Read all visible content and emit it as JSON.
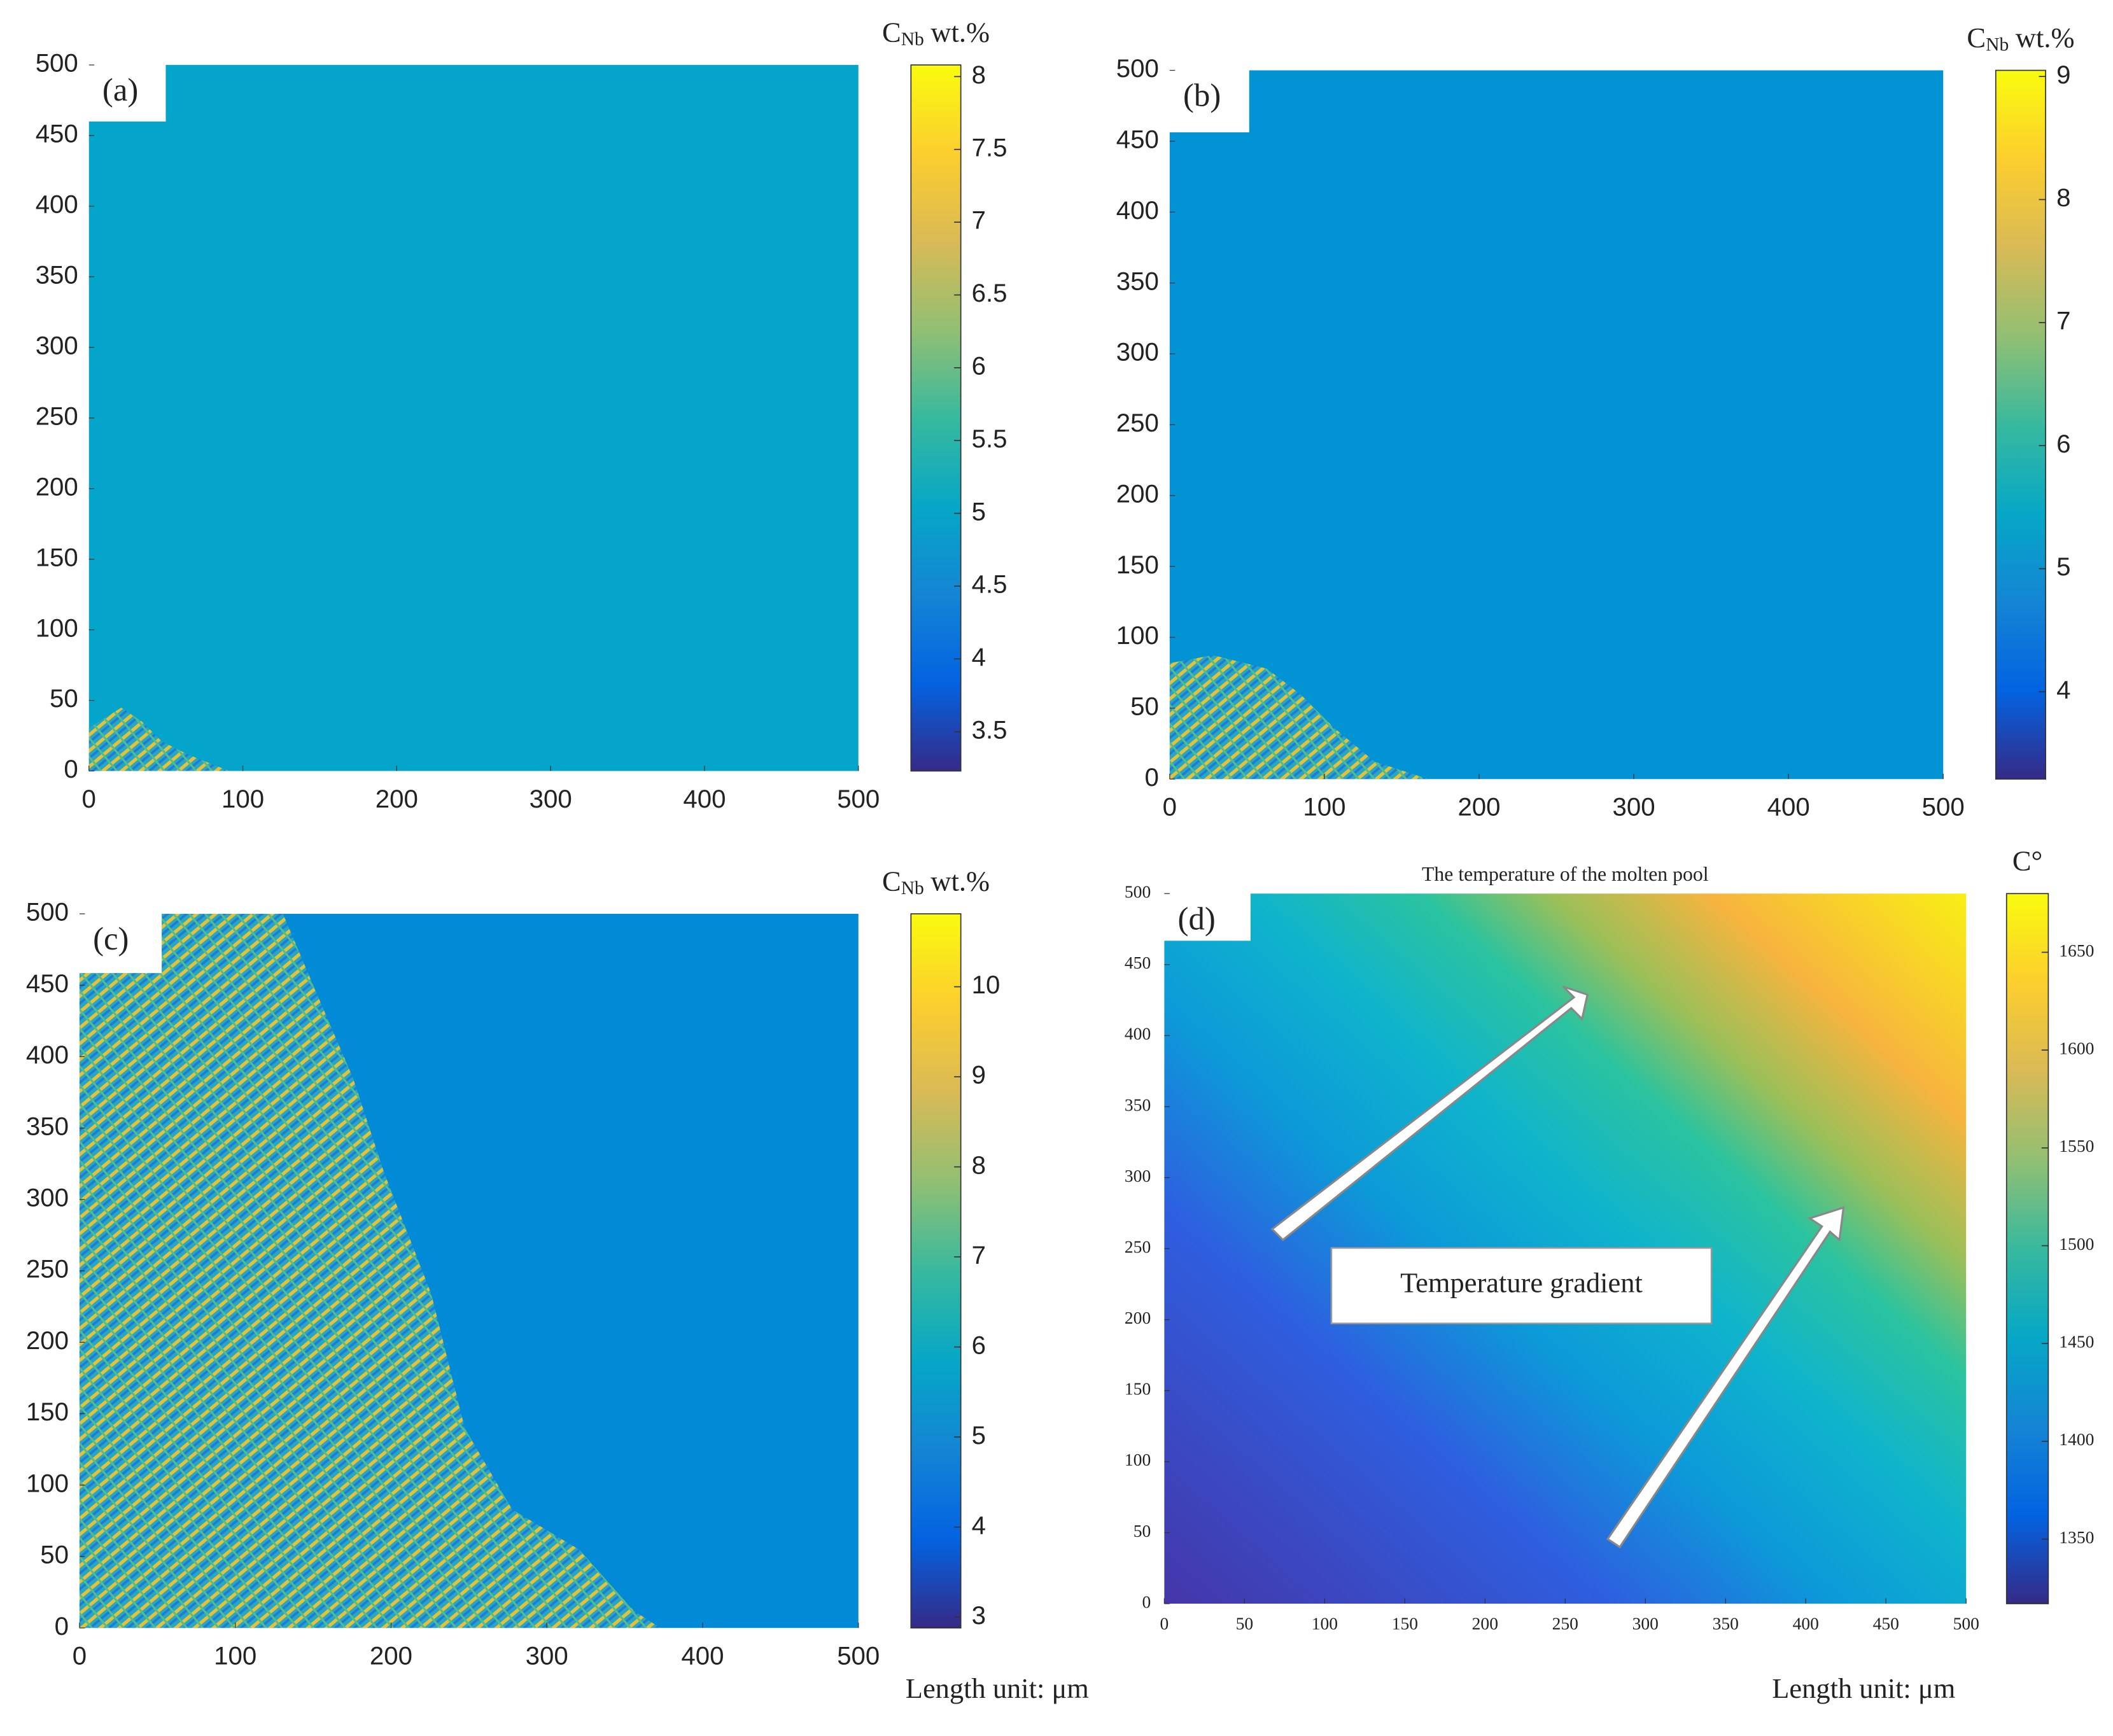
{
  "chart_data": [
    {
      "type": "heatmap",
      "label": "(a)",
      "colorbar_title": {
        "main": "C",
        "sub": "Nb",
        "unit": "wt.%"
      },
      "colormap": "parula",
      "xlim": [
        0,
        500
      ],
      "xticks": [
        0,
        100,
        200,
        300,
        400,
        500
      ],
      "ylim": [
        0,
        500
      ],
      "yticks": [
        0,
        50,
        100,
        150,
        200,
        250,
        300,
        350,
        400,
        450,
        500
      ],
      "clim": [
        3.23,
        8.08
      ],
      "cticks": [
        3.5,
        4,
        4.5,
        5,
        5.5,
        6,
        6.5,
        7,
        7.5,
        8
      ]
    },
    {
      "type": "heatmap",
      "label": "(b)",
      "colorbar_title": {
        "main": "C",
        "sub": "Nb",
        "unit": "wt.%"
      },
      "colormap": "parula",
      "xlim": [
        0,
        500
      ],
      "xticks": [
        0,
        100,
        200,
        300,
        400,
        500
      ],
      "ylim": [
        0,
        500
      ],
      "yticks": [
        0,
        50,
        100,
        150,
        200,
        250,
        300,
        350,
        400,
        450,
        500
      ],
      "clim": [
        3.29,
        9.05
      ],
      "cticks": [
        4,
        5,
        6,
        7,
        8,
        9
      ]
    },
    {
      "type": "heatmap",
      "label": "(c)",
      "colorbar_title": {
        "main": "C",
        "sub": "Nb",
        "unit": "wt.%"
      },
      "colormap": "parula",
      "xlim": [
        0,
        500
      ],
      "xticks": [
        0,
        100,
        200,
        300,
        400,
        500
      ],
      "ylim": [
        0,
        500
      ],
      "yticks": [
        0,
        50,
        100,
        150,
        200,
        250,
        300,
        350,
        400,
        450,
        500
      ],
      "clim": [
        2.88,
        10.81
      ],
      "cticks": [
        3,
        4,
        5,
        6,
        7,
        8,
        9,
        10
      ],
      "note": "Length unit: μm"
    },
    {
      "type": "heatmap",
      "label": "(d)",
      "title": "The temperature of the molten pool",
      "colorbar_title": {
        "main": "C°"
      },
      "colormap": "parula",
      "annotation": "Temperature gradient",
      "xlim": [
        0,
        500
      ],
      "xticks": [
        0,
        50,
        100,
        150,
        200,
        250,
        300,
        350,
        400,
        450,
        500
      ],
      "ylim": [
        0,
        500
      ],
      "yticks": [
        0,
        50,
        100,
        150,
        200,
        250,
        300,
        350,
        400,
        450,
        500
      ],
      "clim": [
        1317,
        1680
      ],
      "cticks": [
        1350,
        1400,
        1450,
        1500,
        1550,
        1600,
        1650
      ],
      "note": "Length unit: μm"
    }
  ]
}
